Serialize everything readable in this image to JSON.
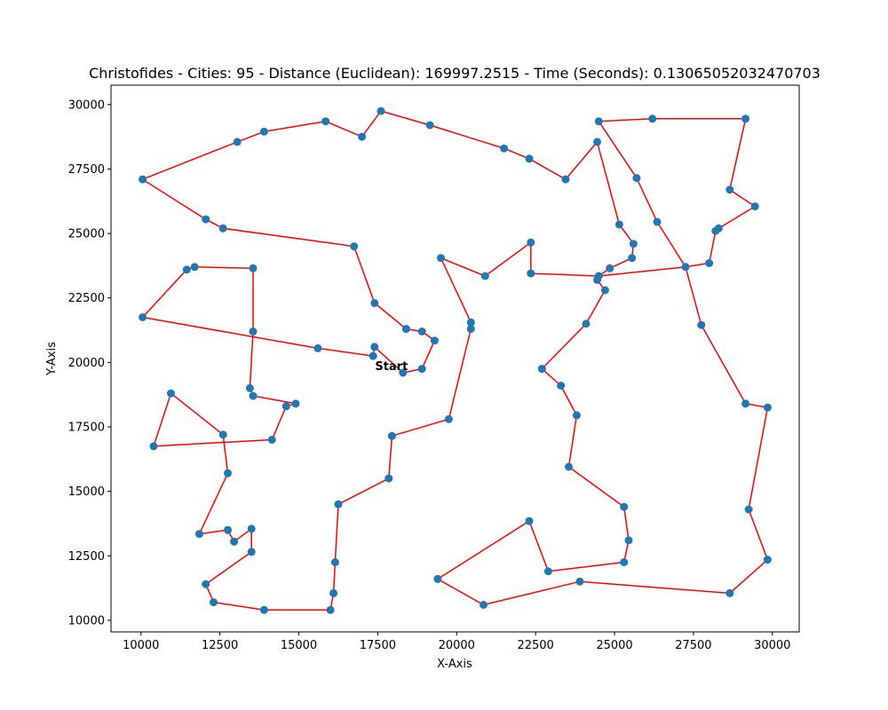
{
  "chart_data": {
    "type": "scatter",
    "title": "Christofides - Cities: 95 - Distance (Euclidean): 169997.2515 - Time (Seconds): 0.13065052032470703",
    "xlabel": "X-Axis",
    "ylabel": "Y-Axis",
    "xlim": [
      9050,
      30850
    ],
    "ylim": [
      9550,
      30750
    ],
    "xticks": [
      10000,
      12500,
      15000,
      17500,
      20000,
      22500,
      25000,
      27500,
      30000
    ],
    "yticks": [
      10000,
      12500,
      15000,
      17500,
      20000,
      22500,
      25000,
      27500,
      30000
    ],
    "grid": false,
    "point_color": "#1f77b4",
    "line_color": "#ff0000",
    "annotation": {
      "text": "Start",
      "x": 18300,
      "y": 19600
    },
    "tour": [
      [
        18300,
        19600
      ],
      [
        18900,
        19750
      ],
      [
        19300,
        20850
      ],
      [
        18900,
        21200
      ],
      [
        18400,
        21300
      ],
      [
        17400,
        22300
      ],
      [
        16750,
        24500
      ],
      [
        12600,
        25200
      ],
      [
        12050,
        25550
      ],
      [
        10050,
        27100
      ],
      [
        13050,
        28550
      ],
      [
        13900,
        28950
      ],
      [
        15850,
        29350
      ],
      [
        17000,
        28750
      ],
      [
        17600,
        29750
      ],
      [
        19150,
        29200
      ],
      [
        21500,
        28300
      ],
      [
        22300,
        27900
      ],
      [
        23450,
        27100
      ],
      [
        24450,
        28550
      ],
      [
        25150,
        25350
      ],
      [
        25600,
        24600
      ],
      [
        25550,
        24050
      ],
      [
        24850,
        23650
      ],
      [
        24500,
        23350
      ],
      [
        22350,
        23450
      ],
      [
        22350,
        24650
      ],
      [
        20900,
        23350
      ],
      [
        19500,
        24050
      ],
      [
        20450,
        21550
      ],
      [
        20450,
        21300
      ],
      [
        19750,
        17800
      ],
      [
        17950,
        17150
      ],
      [
        17850,
        15500
      ],
      [
        16250,
        14500
      ],
      [
        16150,
        12250
      ],
      [
        16100,
        11050
      ],
      [
        16000,
        10400
      ],
      [
        13900,
        10400
      ],
      [
        12300,
        10700
      ],
      [
        12050,
        11400
      ],
      [
        13500,
        12650
      ],
      [
        13500,
        13550
      ],
      [
        12950,
        13050
      ],
      [
        12750,
        13500
      ],
      [
        11850,
        13350
      ],
      [
        12750,
        15700
      ],
      [
        12600,
        17200
      ],
      [
        10950,
        18800
      ],
      [
        10400,
        16750
      ],
      [
        14150,
        17000
      ],
      [
        14600,
        18300
      ],
      [
        14900,
        18400
      ],
      [
        13550,
        18700
      ],
      [
        13450,
        19000
      ],
      [
        13550,
        21200
      ],
      [
        13550,
        23650
      ],
      [
        11700,
        23700
      ],
      [
        11450,
        23600
      ],
      [
        10050,
        21750
      ],
      [
        15600,
        20550
      ],
      [
        17350,
        20250
      ],
      [
        17400,
        20600
      ],
      [
        18300,
        19600
      ]
    ],
    "extra_points": [
      [
        24450,
        23200
      ],
      [
        24700,
        22800
      ],
      [
        24100,
        21500
      ],
      [
        22700,
        19750
      ],
      [
        23300,
        19100
      ],
      [
        23800,
        17950
      ],
      [
        23550,
        15950
      ],
      [
        25300,
        14400
      ],
      [
        25450,
        13100
      ],
      [
        25300,
        12250
      ],
      [
        22900,
        11900
      ],
      [
        22300,
        13850
      ],
      [
        20850,
        10600
      ],
      [
        19400,
        11600
      ],
      [
        23900,
        11500
      ],
      [
        28650,
        11050
      ],
      [
        29850,
        12350
      ],
      [
        29250,
        14300
      ],
      [
        29850,
        18250
      ],
      [
        29150,
        18400
      ],
      [
        27750,
        21450
      ],
      [
        27250,
        23700
      ],
      [
        28000,
        23850
      ],
      [
        28200,
        25100
      ],
      [
        28300,
        25200
      ],
      [
        29450,
        26050
      ],
      [
        28650,
        26700
      ],
      [
        29150,
        29450
      ],
      [
        26200,
        29450
      ],
      [
        24500,
        29350
      ],
      [
        25700,
        27150
      ],
      [
        26350,
        25450
      ]
    ],
    "extra_segments": [
      [
        [
          24500,
          23350
        ],
        [
          24450,
          23200
        ]
      ],
      [
        [
          24450,
          23200
        ],
        [
          24700,
          22800
        ]
      ],
      [
        [
          24700,
          22800
        ],
        [
          24100,
          21500
        ]
      ],
      [
        [
          24100,
          21500
        ],
        [
          22700,
          19750
        ]
      ],
      [
        [
          22700,
          19750
        ],
        [
          23300,
          19100
        ]
      ],
      [
        [
          23300,
          19100
        ],
        [
          23800,
          17950
        ]
      ],
      [
        [
          23800,
          17950
        ],
        [
          23550,
          15950
        ]
      ],
      [
        [
          23550,
          15950
        ],
        [
          25300,
          14400
        ]
      ],
      [
        [
          25300,
          14400
        ],
        [
          25450,
          13100
        ]
      ],
      [
        [
          25450,
          13100
        ],
        [
          25300,
          12250
        ]
      ],
      [
        [
          25300,
          12250
        ],
        [
          22900,
          11900
        ]
      ],
      [
        [
          22900,
          11900
        ],
        [
          22300,
          13850
        ]
      ],
      [
        [
          22300,
          13850
        ],
        [
          19400,
          11600
        ]
      ],
      [
        [
          19400,
          11600
        ],
        [
          20850,
          10600
        ]
      ],
      [
        [
          20850,
          10600
        ],
        [
          23900,
          11500
        ]
      ],
      [
        [
          23900,
          11500
        ],
        [
          28650,
          11050
        ]
      ],
      [
        [
          28650,
          11050
        ],
        [
          29850,
          12350
        ]
      ],
      [
        [
          29850,
          12350
        ],
        [
          29250,
          14300
        ]
      ],
      [
        [
          29250,
          14300
        ],
        [
          29850,
          18250
        ]
      ],
      [
        [
          29850,
          18250
        ],
        [
          29150,
          18400
        ]
      ],
      [
        [
          29150,
          18400
        ],
        [
          27750,
          21450
        ]
      ],
      [
        [
          27750,
          21450
        ],
        [
          27250,
          23700
        ]
      ],
      [
        [
          27250,
          23700
        ],
        [
          26350,
          25450
        ]
      ],
      [
        [
          26350,
          25450
        ],
        [
          25700,
          27150
        ]
      ],
      [
        [
          25700,
          27150
        ],
        [
          24500,
          29350
        ]
      ],
      [
        [
          24500,
          29350
        ],
        [
          26200,
          29450
        ]
      ],
      [
        [
          26200,
          29450
        ],
        [
          29150,
          29450
        ]
      ],
      [
        [
          29150,
          29450
        ],
        [
          28650,
          26700
        ]
      ],
      [
        [
          28650,
          26700
        ],
        [
          29450,
          26050
        ]
      ],
      [
        [
          29450,
          26050
        ],
        [
          28300,
          25200
        ]
      ],
      [
        [
          28300,
          25200
        ],
        [
          28200,
          25100
        ]
      ],
      [
        [
          28200,
          25100
        ],
        [
          28000,
          23850
        ]
      ],
      [
        [
          28000,
          23850
        ],
        [
          27250,
          23700
        ]
      ],
      [
        [
          27250,
          23700
        ],
        [
          24500,
          23350
        ]
      ]
    ]
  }
}
